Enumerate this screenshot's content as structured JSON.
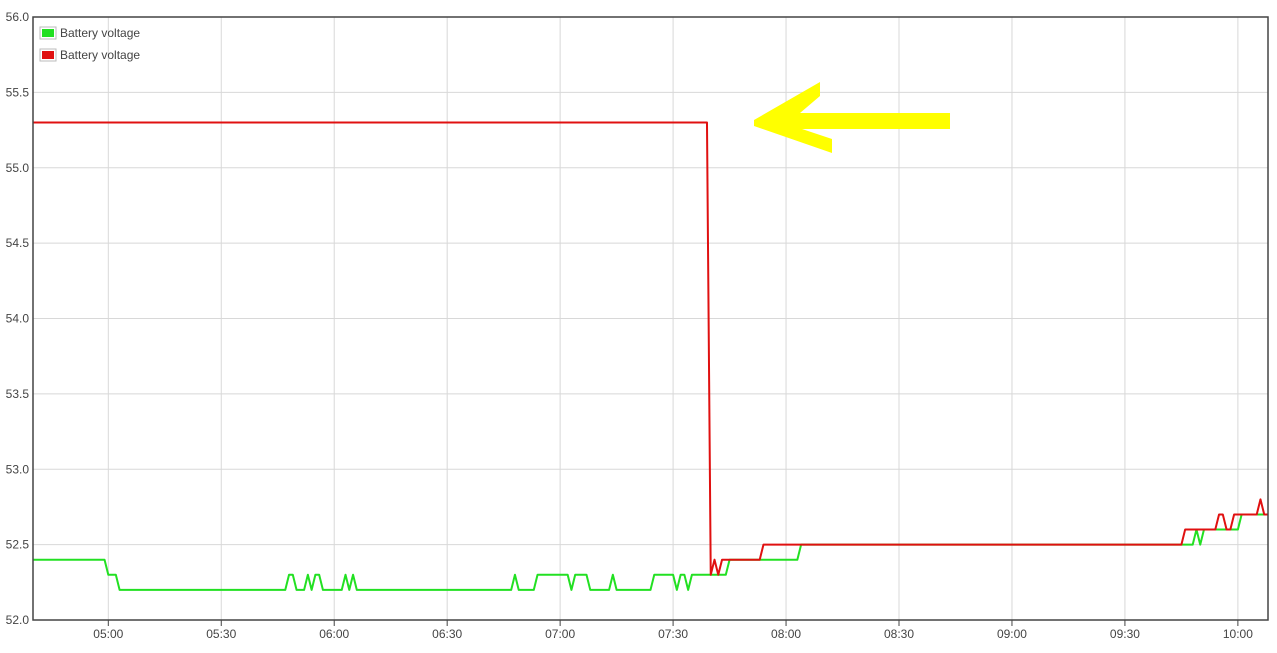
{
  "chart_data": {
    "type": "line",
    "title": "",
    "xlabel": "",
    "ylabel": "",
    "xlim": [
      "04:40",
      "10:08"
    ],
    "ylim": [
      52.0,
      56.0
    ],
    "y_ticks": [
      "52.0",
      "52.5",
      "53.0",
      "53.5",
      "54.0",
      "54.5",
      "55.0",
      "55.5",
      "56.0"
    ],
    "x_ticks": [
      "05:00",
      "05:30",
      "06:00",
      "06:30",
      "07:00",
      "07:30",
      "08:00",
      "08:30",
      "09:00",
      "09:30",
      "10:00"
    ],
    "grid": true,
    "legend": {
      "placement": "top-left"
    },
    "series": [
      {
        "name": "Battery voltage",
        "color": "#22e022",
        "points": [
          [
            "04:40",
            52.4
          ],
          [
            "04:59",
            52.4
          ],
          [
            "05:00",
            52.3
          ],
          [
            "05:02",
            52.3
          ],
          [
            "05:03",
            52.2
          ],
          [
            "05:47",
            52.2
          ],
          [
            "05:48",
            52.3
          ],
          [
            "05:49",
            52.3
          ],
          [
            "05:50",
            52.2
          ],
          [
            "05:52",
            52.2
          ],
          [
            "05:53",
            52.3
          ],
          [
            "05:54",
            52.2
          ],
          [
            "05:55",
            52.3
          ],
          [
            "05:56",
            52.3
          ],
          [
            "05:57",
            52.2
          ],
          [
            "06:02",
            52.2
          ],
          [
            "06:03",
            52.3
          ],
          [
            "06:04",
            52.2
          ],
          [
            "06:05",
            52.3
          ],
          [
            "06:06",
            52.2
          ],
          [
            "06:47",
            52.2
          ],
          [
            "06:48",
            52.3
          ],
          [
            "06:49",
            52.2
          ],
          [
            "06:53",
            52.2
          ],
          [
            "06:54",
            52.3
          ],
          [
            "07:02",
            52.3
          ],
          [
            "07:03",
            52.2
          ],
          [
            "07:04",
            52.3
          ],
          [
            "07:07",
            52.3
          ],
          [
            "07:08",
            52.2
          ],
          [
            "07:13",
            52.2
          ],
          [
            "07:14",
            52.3
          ],
          [
            "07:15",
            52.2
          ],
          [
            "07:24",
            52.2
          ],
          [
            "07:25",
            52.3
          ],
          [
            "07:30",
            52.3
          ],
          [
            "07:31",
            52.2
          ],
          [
            "07:32",
            52.3
          ],
          [
            "07:33",
            52.3
          ],
          [
            "07:34",
            52.2
          ],
          [
            "07:35",
            52.3
          ],
          [
            "07:44",
            52.3
          ],
          [
            "07:45",
            52.4
          ],
          [
            "08:03",
            52.4
          ],
          [
            "08:04",
            52.5
          ],
          [
            "09:48",
            52.5
          ],
          [
            "09:49",
            52.6
          ],
          [
            "09:50",
            52.5
          ],
          [
            "09:51",
            52.6
          ],
          [
            "10:00",
            52.6
          ],
          [
            "10:01",
            52.7
          ],
          [
            "10:08",
            52.7
          ]
        ]
      },
      {
        "name": "Battery voltage",
        "color": "#e01010",
        "points": [
          [
            "04:40",
            55.3
          ],
          [
            "07:39",
            55.3
          ],
          [
            "07:40",
            52.3
          ],
          [
            "07:41",
            52.4
          ],
          [
            "07:42",
            52.3
          ],
          [
            "07:43",
            52.4
          ],
          [
            "07:53",
            52.4
          ],
          [
            "07:54",
            52.5
          ],
          [
            "09:45",
            52.5
          ],
          [
            "09:46",
            52.6
          ],
          [
            "09:54",
            52.6
          ],
          [
            "09:55",
            52.7
          ],
          [
            "09:56",
            52.7
          ],
          [
            "09:57",
            52.6
          ],
          [
            "09:58",
            52.6
          ],
          [
            "09:59",
            52.7
          ],
          [
            "10:05",
            52.7
          ],
          [
            "10:06",
            52.8
          ],
          [
            "10:07",
            52.7
          ],
          [
            "10:08",
            52.7
          ]
        ]
      }
    ],
    "annotation": {
      "shape": "arrow",
      "direction": "left",
      "color": "#ffff00"
    }
  }
}
